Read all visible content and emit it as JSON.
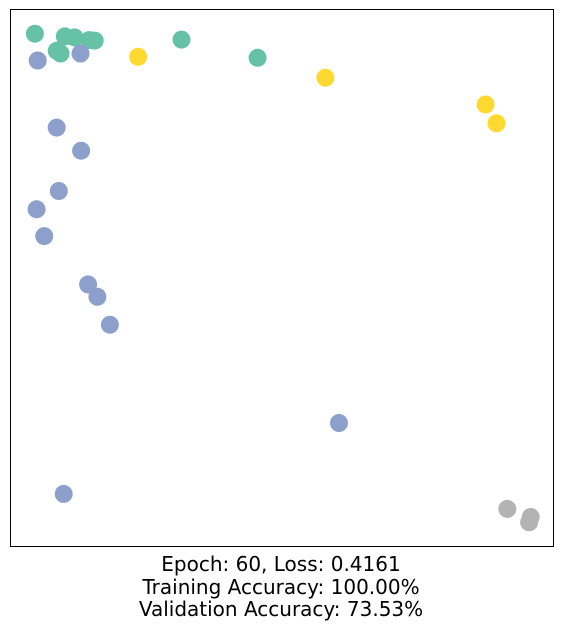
{
  "chart_data": {
    "type": "scatter",
    "axes_visible": false,
    "xlim": [
      0,
      100
    ],
    "ylim": [
      0,
      100
    ],
    "groups": [
      {
        "color": "#66c2a5",
        "points": [
          [
            4.5,
            95.5
          ],
          [
            10.0,
            95.0
          ],
          [
            11.8,
            94.8
          ],
          [
            14.5,
            94.3
          ],
          [
            15.5,
            94.2
          ],
          [
            8.5,
            92.3
          ],
          [
            9.2,
            91.8
          ],
          [
            31.5,
            94.4
          ],
          [
            45.5,
            91.0
          ]
        ]
      },
      {
        "color": "#ffd92f",
        "points": [
          [
            23.5,
            91.2
          ],
          [
            58.0,
            87.3
          ],
          [
            87.5,
            82.3
          ],
          [
            89.5,
            78.8
          ]
        ]
      },
      {
        "color": "#8da0cb",
        "points": [
          [
            5.0,
            90.5
          ],
          [
            12.9,
            91.8
          ],
          [
            8.5,
            78.0
          ],
          [
            13.0,
            73.7
          ],
          [
            8.9,
            66.2
          ],
          [
            4.8,
            62.8
          ],
          [
            6.2,
            57.8
          ],
          [
            14.3,
            48.8
          ],
          [
            16.0,
            46.5
          ],
          [
            18.3,
            41.3
          ],
          [
            60.5,
            23.0
          ],
          [
            9.8,
            9.8
          ]
        ]
      },
      {
        "color": "#b3b3b3",
        "points": [
          [
            91.5,
            7.0
          ],
          [
            95.8,
            5.5
          ],
          [
            95.5,
            4.5
          ]
        ]
      }
    ]
  },
  "caption": {
    "line1": "Epoch: 60, Loss: 0.4161",
    "line2": "Training Accuracy: 100.00%",
    "line3": "Validation Accuracy: 73.53%"
  }
}
